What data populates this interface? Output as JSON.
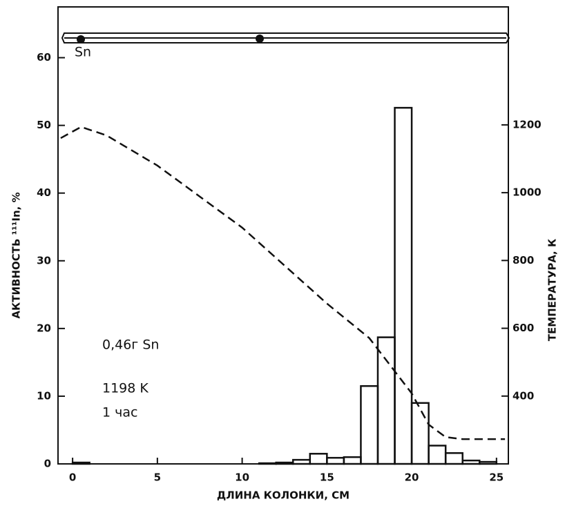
{
  "chart_data": {
    "type": "histogram",
    "xlabel": "ДЛИНА КОЛОНКИ, СМ",
    "ylabel": "АКТИВНОСТЬ ¹¹¹In, %",
    "y2label": "ТЕМПЕРАТУРА, К",
    "bins": [
      0,
      1,
      2,
      3,
      4,
      5,
      6,
      7,
      8,
      9,
      10,
      11,
      12,
      13,
      14,
      15,
      16,
      17,
      18,
      19,
      20,
      21,
      22,
      23,
      24,
      25,
      26
    ],
    "values": [
      0.2,
      0,
      0,
      0,
      0,
      0,
      0,
      0,
      0,
      0,
      0,
      0.1,
      0.2,
      0.6,
      1.5,
      0.9,
      1.0,
      11.5,
      18.7,
      52.6,
      9.0,
      2.7,
      1.6,
      0.5,
      0.3,
      0
    ],
    "color": "#111111",
    "overlay": {
      "type": "line",
      "axis": "y2",
      "style": "dashed",
      "color": "#111111",
      "x": [
        -0.7,
        0.5,
        2,
        5,
        10,
        15,
        17.5,
        20,
        21,
        22,
        23,
        25.5
      ],
      "values": [
        1161,
        1194,
        1169,
        1080,
        897,
        673,
        571,
        408,
        316,
        279,
        273,
        273
      ]
    },
    "xlim": [
      -0.86,
      25.7
    ],
    "ylim": [
      0,
      67.5
    ],
    "y2lim": [
      200,
      1548
    ],
    "xticks": [
      0,
      5,
      10,
      15,
      20,
      25
    ],
    "yticks": [
      0,
      10,
      20,
      30,
      40,
      50,
      60
    ],
    "y2ticks": [
      400,
      600,
      800,
      1000,
      1200
    ],
    "annotations": [
      "Sn",
      "0,46г Sn",
      "1198 K",
      "1 час"
    ]
  }
}
